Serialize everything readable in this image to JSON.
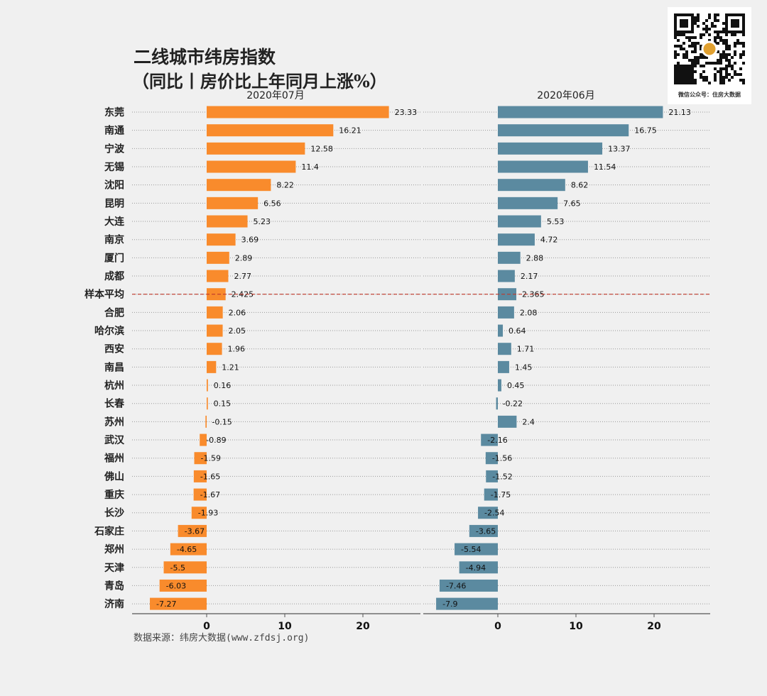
{
  "title": "二线城市纬房指数",
  "subtitle": "（同比丨房价比上年同月上涨%）",
  "source": "数据来源：纬房大数据(www.zfdsj.org)",
  "watermark": {
    "caption": "微信公众号：住房大数据"
  },
  "chart_data": [
    {
      "type": "bar",
      "orientation": "horizontal",
      "title": "2020年07月",
      "color": "#f98b2c",
      "categories": [
        "东莞",
        "南通",
        "宁波",
        "无锡",
        "沈阳",
        "昆明",
        "大连",
        "南京",
        "厦门",
        "成都",
        "样本平均",
        "合肥",
        "哈尔滨",
        "西安",
        "南昌",
        "杭州",
        "长春",
        "苏州",
        "武汉",
        "福州",
        "佛山",
        "重庆",
        "长沙",
        "石家庄",
        "郑州",
        "天津",
        "青岛",
        "济南"
      ],
      "values": [
        23.33,
        16.21,
        12.58,
        11.4,
        8.22,
        6.56,
        5.23,
        3.69,
        2.89,
        2.77,
        2.425,
        2.06,
        2.05,
        1.96,
        1.21,
        0.16,
        0.15,
        -0.15,
        -0.89,
        -1.59,
        -1.65,
        -1.67,
        -1.93,
        -3.67,
        -4.65,
        -5.5,
        -6.03,
        -7.27
      ],
      "labels": [
        "23.33",
        "16.21",
        "12.58",
        "11.4",
        "8.22",
        "6.56",
        "5.23",
        "3.69",
        "2.89",
        "2.77",
        "2.425",
        "2.06",
        "2.05",
        "1.96",
        "1.21",
        "0.16",
        "0.15",
        "-0.15",
        "-0.89",
        "-1.59",
        "-1.65",
        "-1.67",
        "-1.93",
        "-3.67",
        "-4.65",
        "-5.5",
        "-6.03",
        "-7.27"
      ],
      "xticks": [
        "0",
        "10",
        "20"
      ],
      "xlim": [
        -9.5,
        27.4
      ],
      "reference_line": {
        "category": "样本平均",
        "color": "#c0392b",
        "style": "dashed"
      }
    },
    {
      "type": "bar",
      "orientation": "horizontal",
      "title": "2020年06月",
      "color": "#5b8aa0",
      "categories": [
        "东莞",
        "南通",
        "宁波",
        "无锡",
        "沈阳",
        "昆明",
        "大连",
        "南京",
        "厦门",
        "成都",
        "样本平均",
        "合肥",
        "哈尔滨",
        "西安",
        "南昌",
        "杭州",
        "长春",
        "苏州",
        "武汉",
        "福州",
        "佛山",
        "重庆",
        "长沙",
        "石家庄",
        "郑州",
        "天津",
        "青岛",
        "济南"
      ],
      "values": [
        21.13,
        16.75,
        13.37,
        11.54,
        8.62,
        7.65,
        5.53,
        4.72,
        2.88,
        2.17,
        2.365,
        2.08,
        0.64,
        1.71,
        1.45,
        0.45,
        -0.22,
        2.4,
        -2.16,
        -1.56,
        -1.52,
        -1.75,
        -2.54,
        -3.65,
        -5.54,
        -4.94,
        -7.46,
        -7.9
      ],
      "labels": [
        "21.13",
        "16.75",
        "13.37",
        "11.54",
        "8.62",
        "7.65",
        "5.53",
        "4.72",
        "2.88",
        "2.17",
        "2.365",
        "2.08",
        "0.64",
        "1.71",
        "1.45",
        "0.45",
        "-0.22",
        "2.4",
        "-2.16",
        "-1.56",
        "-1.52",
        "-1.75",
        "-2.54",
        "-3.65",
        "-5.54",
        "-4.94",
        "-7.46",
        "-7.9"
      ],
      "xticks": [
        "0",
        "10",
        "20"
      ],
      "xlim": [
        -9.5,
        27.2
      ]
    }
  ]
}
